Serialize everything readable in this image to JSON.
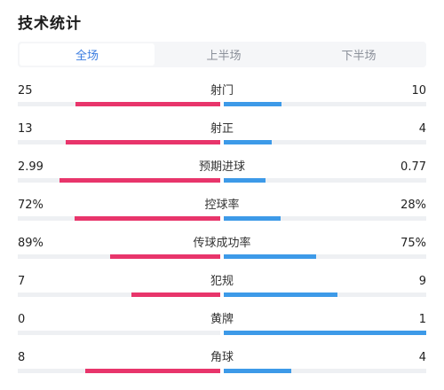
{
  "title": "技术统计",
  "tabs": [
    {
      "label": "全场",
      "active": true
    },
    {
      "label": "上半场",
      "active": false
    },
    {
      "label": "下半场",
      "active": false
    }
  ],
  "colors": {
    "home": "#e8356b",
    "away": "#3d9ae8",
    "accent": "#3a7ce0"
  },
  "stats": [
    {
      "label": "射门",
      "left": "25",
      "right": "10",
      "left_fraction": 0.714,
      "right_fraction": 0.286
    },
    {
      "label": "射正",
      "left": "13",
      "right": "4",
      "left_fraction": 0.765,
      "right_fraction": 0.235
    },
    {
      "label": "预期进球",
      "left": "2.99",
      "right": "0.77",
      "left_fraction": 0.795,
      "right_fraction": 0.205
    },
    {
      "label": "控球率",
      "left": "72%",
      "right": "28%",
      "left_fraction": 0.72,
      "right_fraction": 0.28
    },
    {
      "label": "传球成功率",
      "left": "89%",
      "right": "75%",
      "left_fraction": 0.543,
      "right_fraction": 0.457
    },
    {
      "label": "犯规",
      "left": "7",
      "right": "9",
      "left_fraction": 0.4375,
      "right_fraction": 0.5625
    },
    {
      "label": "黄牌",
      "left": "0",
      "right": "1",
      "left_fraction": 0.0,
      "right_fraction": 1.0
    },
    {
      "label": "角球",
      "left": "8",
      "right": "4",
      "left_fraction": 0.667,
      "right_fraction": 0.333
    }
  ]
}
